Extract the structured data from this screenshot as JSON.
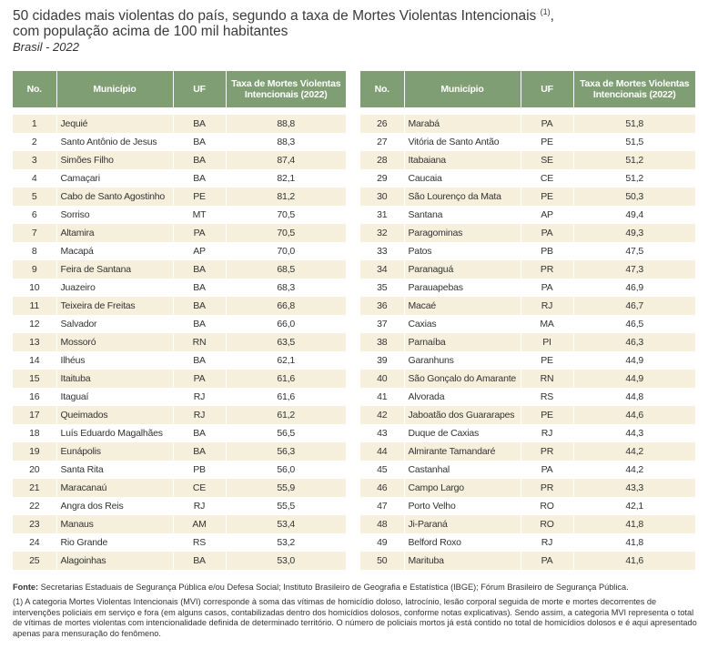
{
  "title": {
    "line1": "50 cidades mais violentas do país, segundo a taxa de Mortes Violentas Intencionais",
    "note_mark": "(1)",
    "line1_end": ",",
    "line2": "com população acima de 100 mil habitantes",
    "subtitle": "Brasil - 2022"
  },
  "tables": [
    {
      "columns": [
        "No.",
        "Município",
        "UF",
        "Taxa de Mortes Violentas Intencionais (2022)"
      ],
      "rows": [
        [
          "1",
          "Jequié",
          "BA",
          "88,8"
        ],
        [
          "2",
          "Santo Antônio de Jesus",
          "BA",
          "88,3"
        ],
        [
          "3",
          "Simões Filho",
          "BA",
          "87,4"
        ],
        [
          "4",
          "Camaçari",
          "BA",
          "82,1"
        ],
        [
          "5",
          "Cabo de Santo Agostinho",
          "PE",
          "81,2"
        ],
        [
          "6",
          "Sorriso",
          "MT",
          "70,5"
        ],
        [
          "7",
          "Altamira",
          "PA",
          "70,5"
        ],
        [
          "8",
          "Macapá",
          "AP",
          "70,0"
        ],
        [
          "9",
          "Feira de Santana",
          "BA",
          "68,5"
        ],
        [
          "10",
          "Juazeiro",
          "BA",
          "68,3"
        ],
        [
          "11",
          "Teixeira de Freitas",
          "BA",
          "66,8"
        ],
        [
          "12",
          "Salvador",
          "BA",
          "66,0"
        ],
        [
          "13",
          "Mossoró",
          "RN",
          "63,5"
        ],
        [
          "14",
          "Ilhéus",
          "BA",
          "62,1"
        ],
        [
          "15",
          "Itaituba",
          "PA",
          "61,6"
        ],
        [
          "16",
          "Itaguaí",
          "RJ",
          "61,6"
        ],
        [
          "17",
          "Queimados",
          "RJ",
          "61,2"
        ],
        [
          "18",
          "Luís Eduardo Magalhães",
          "BA",
          "56,5"
        ],
        [
          "19",
          "Eunápolis",
          "BA",
          "56,3"
        ],
        [
          "20",
          "Santa Rita",
          "PB",
          "56,0"
        ],
        [
          "21",
          "Maracanaú",
          "CE",
          "55,9"
        ],
        [
          "22",
          "Angra dos Reis",
          "RJ",
          "55,5"
        ],
        [
          "23",
          "Manaus",
          "AM",
          "53,4"
        ],
        [
          "24",
          "Rio Grande",
          "RS",
          "53,2"
        ],
        [
          "25",
          "Alagoinhas",
          "BA",
          "53,0"
        ]
      ]
    },
    {
      "columns": [
        "No.",
        "Município",
        "UF",
        "Taxa de Mortes Violentas Intencionais (2022)"
      ],
      "rows": [
        [
          "26",
          "Marabá",
          "PA",
          "51,8"
        ],
        [
          "27",
          "Vitória de Santo Antão",
          "PE",
          "51,5"
        ],
        [
          "28",
          "Itabaiana",
          "SE",
          "51,2"
        ],
        [
          "29",
          "Caucaia",
          "CE",
          "51,2"
        ],
        [
          "30",
          "São Lourenço da Mata",
          "PE",
          "50,3"
        ],
        [
          "31",
          "Santana",
          "AP",
          "49,4"
        ],
        [
          "32",
          "Paragominas",
          "PA",
          "49,3"
        ],
        [
          "33",
          "Patos",
          "PB",
          "47,5"
        ],
        [
          "34",
          "Paranaguá",
          "PR",
          "47,3"
        ],
        [
          "35",
          "Parauapebas",
          "PA",
          "46,9"
        ],
        [
          "36",
          "Macaé",
          "RJ",
          "46,7"
        ],
        [
          "37",
          "Caxias",
          "MA",
          "46,5"
        ],
        [
          "38",
          "Parnaíba",
          "PI",
          "46,3"
        ],
        [
          "39",
          "Garanhuns",
          "PE",
          "44,9"
        ],
        [
          "40",
          "São Gonçalo do Amarante",
          "RN",
          "44,9"
        ],
        [
          "41",
          "Alvorada",
          "RS",
          "44,8"
        ],
        [
          "42",
          "Jaboatão dos Guararapes",
          "PE",
          "44,6"
        ],
        [
          "43",
          "Duque de Caxias",
          "RJ",
          "44,3"
        ],
        [
          "44",
          "Almirante Tamandaré",
          "PR",
          "44,2"
        ],
        [
          "45",
          "Castanhal",
          "PA",
          "44,2"
        ],
        [
          "46",
          "Campo Largo",
          "PR",
          "43,3"
        ],
        [
          "47",
          "Porto Velho",
          "RO",
          "42,1"
        ],
        [
          "48",
          "Ji-Paraná",
          "RO",
          "41,8"
        ],
        [
          "49",
          "Belford Roxo",
          "RJ",
          "41,8"
        ],
        [
          "50",
          "Marituba",
          "PA",
          "41,6"
        ]
      ]
    }
  ],
  "footer": {
    "source_label": "Fonte:",
    "source": "Secretarias Estaduais de Segurança Pública e/ou Defesa Social; Instituto Brasileiro de Geografia e Estatística (IBGE); Fórum Brasileiro de Segurança Pública.",
    "note": "(1) A categoria Mortes Violentas Intencionais (MVI) corresponde à soma das vítimas de homicídio doloso, latrocínio, lesão corporal seguida de morte e mortes decorrentes de intervenções policiais em serviço e fora (em alguns casos, contabilizadas dentro dos homicídios dolosos, conforme notas explicativas). Sendo assim, a categoria MVI representa o total de vítimas de mortes violentas com intencionalidade definida de determinado território. O número de policiais mortos já está contido no total de homicídios dolosos e é aqui apresentado apenas para mensuração do fenômeno."
  }
}
